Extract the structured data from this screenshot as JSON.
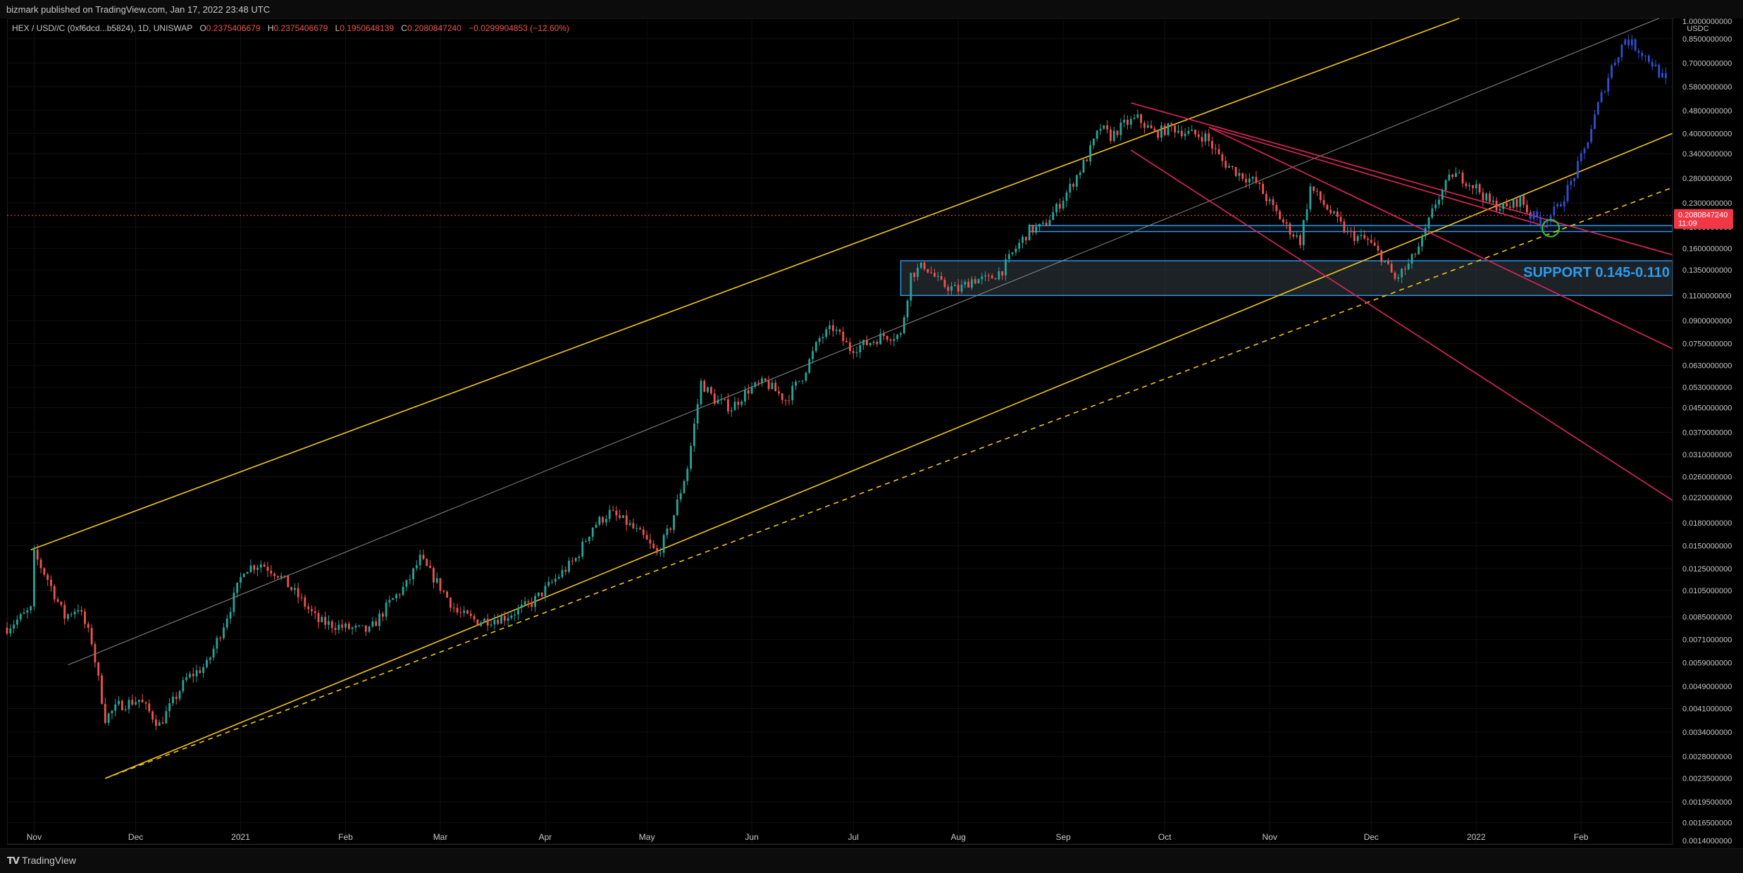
{
  "header": {
    "publisher": "bizmark published on TradingView.com, Jan 17, 2022 23:48 UTC"
  },
  "legend": {
    "symbol": "HEX / USD//C (0xf6dcd...b5824), 1D, UNISWAP",
    "open_label": "O",
    "open": "0.2375406679",
    "high_label": "H",
    "high": "0.2375406679",
    "low_label": "L",
    "low": "0.1950648139",
    "close_label": "C",
    "close": "0.2080847240",
    "change": "−0.0299904853 (−12.60%)"
  },
  "footer": {
    "brand": "TradingView",
    "brand_mark": "TV"
  },
  "colors": {
    "background": "#000000",
    "up": "#26a69a",
    "down": "#ef5350",
    "projection": "#2f4fd1",
    "channel": "#f0c419",
    "midline": "#8a8a8a",
    "resistance": "#e0245e",
    "support_box": "#2a9cf0",
    "target_circle": "#35c43a",
    "axis_text": "#c8c8c8",
    "price_tag": "#f23645"
  },
  "chart_data": {
    "type": "candlestick",
    "symbol": "HEX / USD//C",
    "interval": "1D",
    "exchange": "UNISWAP",
    "y_scale": "log",
    "ylim": [
      0.0014,
      1.0
    ],
    "y_unit": "USDC",
    "last_price": 0.208084724,
    "last_price_label": "0.2080847240",
    "countdown": "11:09",
    "y_ticks": [
      {
        "value": 1.0,
        "label": "1.0000000000"
      },
      {
        "value": 0.85,
        "label": "0.8500000000"
      },
      {
        "value": 0.7,
        "label": "0.7000000000"
      },
      {
        "value": 0.58,
        "label": "0.5800000000"
      },
      {
        "value": 0.48,
        "label": "0.4800000000"
      },
      {
        "value": 0.4,
        "label": "0.4000000000"
      },
      {
        "value": 0.34,
        "label": "0.3400000000"
      },
      {
        "value": 0.28,
        "label": "0.2800000000"
      },
      {
        "value": 0.23,
        "label": "0.2300000000"
      },
      {
        "value": 0.19,
        "label": "0.1900000000"
      },
      {
        "value": 0.16,
        "label": "0.1600000000"
      },
      {
        "value": 0.135,
        "label": "0.1350000000"
      },
      {
        "value": 0.11,
        "label": "0.1100000000"
      },
      {
        "value": 0.09,
        "label": "0.0900000000"
      },
      {
        "value": 0.075,
        "label": "0.0750000000"
      },
      {
        "value": 0.063,
        "label": "0.0630000000"
      },
      {
        "value": 0.053,
        "label": "0.0530000000"
      },
      {
        "value": 0.045,
        "label": "0.0450000000"
      },
      {
        "value": 0.037,
        "label": "0.0370000000"
      },
      {
        "value": 0.031,
        "label": "0.0310000000"
      },
      {
        "value": 0.026,
        "label": "0.0260000000"
      },
      {
        "value": 0.022,
        "label": "0.0220000000"
      },
      {
        "value": 0.018,
        "label": "0.0180000000"
      },
      {
        "value": 0.015,
        "label": "0.0150000000"
      },
      {
        "value": 0.0125,
        "label": "0.0125000000"
      },
      {
        "value": 0.0105,
        "label": "0.0105000000"
      },
      {
        "value": 0.0085,
        "label": "0.0085000000"
      },
      {
        "value": 0.0071,
        "label": "0.0071000000"
      },
      {
        "value": 0.0059,
        "label": "0.0059000000"
      },
      {
        "value": 0.0049,
        "label": "0.0049000000"
      },
      {
        "value": 0.0041,
        "label": "0.0041000000"
      },
      {
        "value": 0.0034,
        "label": "0.0034000000"
      },
      {
        "value": 0.0028,
        "label": "0.0028000000"
      },
      {
        "value": 0.00235,
        "label": "0.0023500000"
      },
      {
        "value": 0.00195,
        "label": "0.0019500000"
      },
      {
        "value": 0.00165,
        "label": "0.0016500000"
      },
      {
        "value": 0.0014,
        "label": "0.0014000000"
      }
    ],
    "x_range": [
      "2020-10-24",
      "2022-02-28"
    ],
    "x_ticks": [
      {
        "date": "2020-11-01",
        "label": "Nov"
      },
      {
        "date": "2020-12-01",
        "label": "Dec"
      },
      {
        "date": "2021-01-01",
        "label": "2021"
      },
      {
        "date": "2021-02-01",
        "label": "Feb"
      },
      {
        "date": "2021-03-01",
        "label": "Mar"
      },
      {
        "date": "2021-04-01",
        "label": "Apr"
      },
      {
        "date": "2021-05-01",
        "label": "May"
      },
      {
        "date": "2021-06-01",
        "label": "Jun"
      },
      {
        "date": "2021-07-01",
        "label": "Jul"
      },
      {
        "date": "2021-08-01",
        "label": "Aug"
      },
      {
        "date": "2021-09-01",
        "label": "Sep"
      },
      {
        "date": "2021-10-01",
        "label": "Oct"
      },
      {
        "date": "2021-11-01",
        "label": "Nov"
      },
      {
        "date": "2021-12-01",
        "label": "Dec"
      },
      {
        "date": "2022-01-01",
        "label": "2022"
      },
      {
        "date": "2022-02-01",
        "label": "Feb"
      }
    ],
    "price_path": [
      [
        "2020-10-24",
        0.0078
      ],
      [
        "2020-10-31",
        0.009
      ],
      [
        "2020-11-01",
        0.014
      ],
      [
        "2020-11-05",
        0.0115
      ],
      [
        "2020-11-10",
        0.0085
      ],
      [
        "2020-11-14",
        0.0092
      ],
      [
        "2020-11-18",
        0.007
      ],
      [
        "2020-11-22",
        0.0038
      ],
      [
        "2020-11-26",
        0.0042
      ],
      [
        "2020-12-02",
        0.0044
      ],
      [
        "2020-12-08",
        0.0036
      ],
      [
        "2020-12-16",
        0.0052
      ],
      [
        "2020-12-22",
        0.0058
      ],
      [
        "2020-12-26",
        0.0075
      ],
      [
        "2020-12-29",
        0.0092
      ],
      [
        "2021-01-02",
        0.0125
      ],
      [
        "2021-01-07",
        0.013
      ],
      [
        "2021-01-12",
        0.012
      ],
      [
        "2021-01-18",
        0.01
      ],
      [
        "2021-01-24",
        0.0082
      ],
      [
        "2021-02-01",
        0.0078
      ],
      [
        "2021-02-08",
        0.0076
      ],
      [
        "2021-02-14",
        0.0095
      ],
      [
        "2021-02-19",
        0.011
      ],
      [
        "2021-02-23",
        0.0135
      ],
      [
        "2021-02-28",
        0.0112
      ],
      [
        "2021-03-06",
        0.0088
      ],
      [
        "2021-03-12",
        0.0082
      ],
      [
        "2021-03-20",
        0.0085
      ],
      [
        "2021-03-28",
        0.0095
      ],
      [
        "2021-04-04",
        0.0115
      ],
      [
        "2021-04-10",
        0.0135
      ],
      [
        "2021-04-15",
        0.0175
      ],
      [
        "2021-04-20",
        0.0195
      ],
      [
        "2021-04-25",
        0.018
      ],
      [
        "2021-04-30",
        0.016
      ],
      [
        "2021-05-04",
        0.014
      ],
      [
        "2021-05-08",
        0.0175
      ],
      [
        "2021-05-13",
        0.028
      ],
      [
        "2021-05-17",
        0.055
      ],
      [
        "2021-05-21",
        0.048
      ],
      [
        "2021-05-26",
        0.045
      ],
      [
        "2021-05-31",
        0.052
      ],
      [
        "2021-06-05",
        0.055
      ],
      [
        "2021-06-11",
        0.048
      ],
      [
        "2021-06-16",
        0.058
      ],
      [
        "2021-06-21",
        0.078
      ],
      [
        "2021-06-25",
        0.085
      ],
      [
        "2021-06-30",
        0.072
      ],
      [
        "2021-07-05",
        0.075
      ],
      [
        "2021-07-10",
        0.08
      ],
      [
        "2021-07-15",
        0.08
      ],
      [
        "2021-07-18",
        0.13
      ],
      [
        "2021-07-22",
        0.14
      ],
      [
        "2021-07-27",
        0.12
      ],
      [
        "2021-08-01",
        0.115
      ],
      [
        "2021-08-05",
        0.125
      ],
      [
        "2021-08-10",
        0.125
      ],
      [
        "2021-08-14",
        0.135
      ],
      [
        "2021-08-18",
        0.16
      ],
      [
        "2021-08-22",
        0.185
      ],
      [
        "2021-08-26",
        0.19
      ],
      [
        "2021-08-30",
        0.22
      ],
      [
        "2021-09-03",
        0.26
      ],
      [
        "2021-09-08",
        0.33
      ],
      [
        "2021-09-12",
        0.42
      ],
      [
        "2021-09-15",
        0.39
      ],
      [
        "2021-09-19",
        0.43
      ],
      [
        "2021-09-23",
        0.45
      ],
      [
        "2021-09-28",
        0.4
      ],
      [
        "2021-10-03",
        0.42
      ],
      [
        "2021-10-08",
        0.4
      ],
      [
        "2021-10-13",
        0.39
      ],
      [
        "2021-10-18",
        0.32
      ],
      [
        "2021-10-23",
        0.29
      ],
      [
        "2021-10-28",
        0.27
      ],
      [
        "2021-11-02",
        0.22
      ],
      [
        "2021-11-06",
        0.19
      ],
      [
        "2021-11-10",
        0.17
      ],
      [
        "2021-11-13",
        0.26
      ],
      [
        "2021-11-18",
        0.22
      ],
      [
        "2021-11-24",
        0.18
      ],
      [
        "2021-11-30",
        0.17
      ],
      [
        "2021-12-04",
        0.15
      ],
      [
        "2021-12-08",
        0.125
      ],
      [
        "2021-12-12",
        0.14
      ],
      [
        "2021-12-16",
        0.17
      ],
      [
        "2021-12-20",
        0.23
      ],
      [
        "2021-12-25",
        0.29
      ],
      [
        "2021-12-28",
        0.28
      ],
      [
        "2022-01-01",
        0.26
      ],
      [
        "2022-01-05",
        0.23
      ],
      [
        "2022-01-10",
        0.22
      ],
      [
        "2022-01-14",
        0.2375
      ],
      [
        "2022-01-17",
        0.208
      ]
    ],
    "projection_path": [
      [
        "2022-01-17",
        0.208
      ],
      [
        "2022-01-21",
        0.2
      ],
      [
        "2022-01-25",
        0.22
      ],
      [
        "2022-01-29",
        0.27
      ],
      [
        "2022-02-02",
        0.35
      ],
      [
        "2022-02-06",
        0.5
      ],
      [
        "2022-02-10",
        0.68
      ],
      [
        "2022-02-14",
        0.85
      ],
      [
        "2022-02-18",
        0.78
      ],
      [
        "2022-02-22",
        0.7
      ],
      [
        "2022-02-26",
        0.6
      ]
    ],
    "trendlines": [
      {
        "type": "channel-top",
        "from": [
          "2020-10-31",
          0.0145
        ],
        "to": [
          "2021-12-27",
          1.0
        ]
      },
      {
        "type": "channel-bottom",
        "from": [
          "2020-11-22",
          0.00235
        ],
        "to": [
          "2022-02-28",
          0.4
        ]
      },
      {
        "type": "channel-bottom-dashed",
        "from": [
          "2020-11-22",
          0.00235
        ],
        "to": [
          "2022-02-28",
          0.26
        ]
      },
      {
        "type": "midline",
        "from": [
          "2020-11-11",
          0.0058
        ],
        "to": [
          "2022-02-24",
          1.0
        ]
      },
      {
        "type": "resistance",
        "from": [
          "2021-09-21",
          0.51
        ],
        "to": [
          "2022-02-28",
          0.152
        ]
      },
      {
        "type": "resistance",
        "from": [
          "2021-10-14",
          0.42
        ],
        "to": [
          "2022-01-22",
          0.19
        ]
      },
      {
        "type": "resistance",
        "from": [
          "2021-09-21",
          0.35
        ],
        "to": [
          "2022-02-28",
          0.0215
        ]
      },
      {
        "type": "resistance",
        "from": [
          "2021-10-14",
          0.42
        ],
        "to": [
          "2022-02-28",
          0.072
        ]
      }
    ],
    "zones": [
      {
        "name": "support",
        "label": "SUPPORT 0.145-0.110",
        "from_date": "2021-07-15",
        "to_date": "2022-02-28",
        "low": 0.11,
        "high": 0.145
      },
      {
        "name": "resistance-band",
        "label": "",
        "from_date": "2021-08-22",
        "to_date": "2022-02-28",
        "low": 0.183,
        "high": 0.192
      }
    ],
    "markers": [
      {
        "type": "circle",
        "date": "2022-01-23",
        "value": 0.188
      }
    ]
  }
}
